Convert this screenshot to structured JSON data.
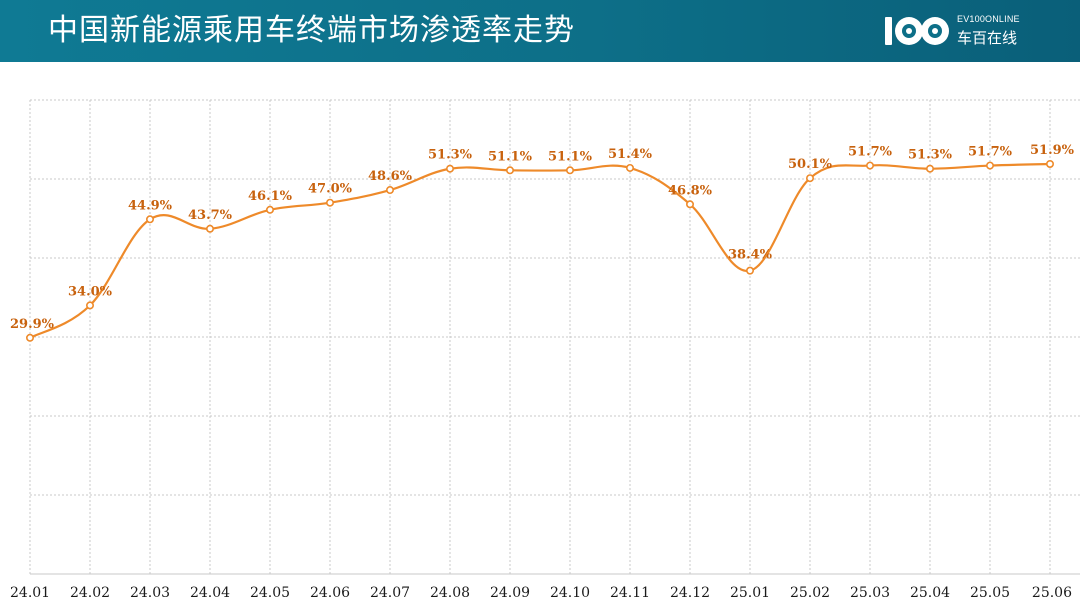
{
  "header": {
    "title": "中国新能源乘用车终端市场渗透率走势",
    "logo_brand": "EV100ONLINE",
    "logo_name": "车百在线"
  },
  "colors": {
    "header_bg": "#0d6f88",
    "line": "#ee8a2a",
    "label": "#c8620e",
    "grid": "#c8c8c8"
  },
  "chart_data": {
    "type": "line",
    "categories": [
      "24.01",
      "24.02",
      "24.03",
      "24.04",
      "24.05",
      "24.06",
      "24.07",
      "24.08",
      "24.09",
      "24.10",
      "24.11",
      "24.12",
      "25.01",
      "25.02",
      "25.03",
      "25.04",
      "25.05",
      "25.06"
    ],
    "series": [
      {
        "values": [
          29.9,
          34.0,
          44.9,
          43.7,
          46.1,
          47.0,
          48.6,
          51.3,
          51.1,
          51.1,
          51.4,
          46.8,
          38.4,
          50.1,
          51.7,
          51.3,
          51.7,
          51.9
        ],
        "labels": [
          "29.9%",
          "34.0%",
          "44.9%",
          "43.7%",
          "46.1%",
          "47.0%",
          "48.6%",
          "51.3%",
          "51.1%",
          "51.1%",
          "51.4%",
          "46.8%",
          "38.4%",
          "50.1%",
          "51.7%",
          "51.3%",
          "51.7%",
          "51.9%"
        ]
      }
    ],
    "ylim": [
      0,
      60
    ],
    "grid": true,
    "title": "",
    "xlabel": "",
    "ylabel": ""
  }
}
